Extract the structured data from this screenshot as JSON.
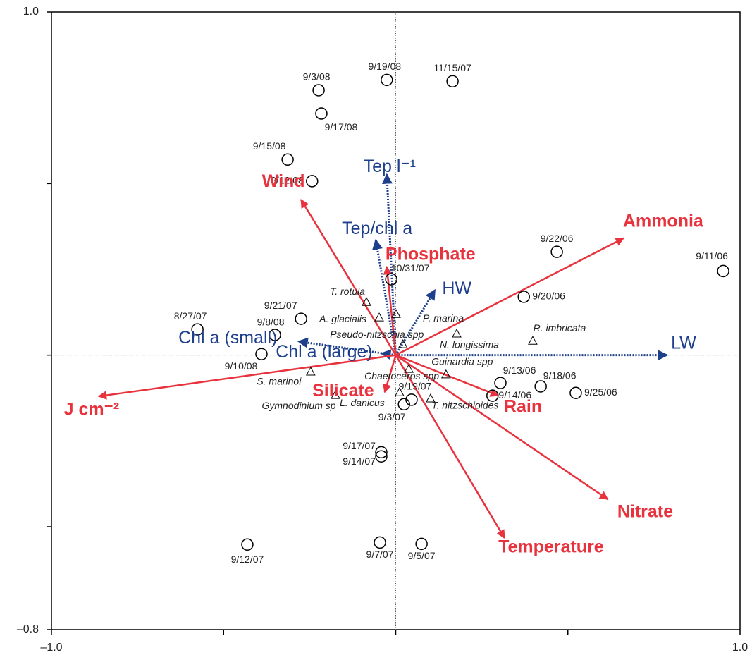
{
  "chart_data": {
    "type": "scatter",
    "xlim": [
      -1.0,
      1.0
    ],
    "ylim": [
      -0.8,
      1.0
    ],
    "xticks": [
      {
        "value": -1.0,
        "label": "–1.0"
      },
      {
        "value": 1.0,
        "label": "1.0"
      }
    ],
    "yticks": [
      {
        "value": -0.8,
        "label": "–0.8"
      },
      {
        "value": 1.0,
        "label": "1.0"
      }
    ],
    "xminorticks": [
      -0.5,
      0,
      0.5
    ],
    "yminorticks": [
      -0.5,
      0,
      0.5
    ],
    "sites": {
      "labels": [
        "9/11/06",
        "9/22/06",
        "9/20/06",
        "9/13/06",
        "9/18/06",
        "9/25/06",
        "9/14/06",
        "9/19/08",
        "11/15/07",
        "9/3/08",
        "9/17/08",
        "9/15/08",
        "9/12/08",
        "10/31/07",
        "9/21/07",
        "8/27/07",
        "9/8/08",
        "9/10/08",
        "9/19/07",
        "9/3/07",
        "9/17/07",
        "9/14/07",
        "9/12/07",
        "9/7/07",
        "9/5/07"
      ],
      "x": [
        0.951,
        0.468,
        0.372,
        0.304,
        0.421,
        0.523,
        0.281,
        -0.026,
        0.165,
        -0.224,
        -0.216,
        -0.314,
        -0.243,
        -0.013,
        -0.275,
        -0.576,
        -0.351,
        -0.39,
        0.046,
        0.024,
        -0.042,
        -0.042,
        -0.431,
        -0.046,
        0.075
      ],
      "y": [
        0.245,
        0.301,
        0.17,
        -0.081,
        -0.091,
        -0.11,
        -0.118,
        0.802,
        0.798,
        0.772,
        0.704,
        0.57,
        0.507,
        0.221,
        0.106,
        0.075,
        0.059,
        0.003,
        -0.13,
        -0.143,
        -0.283,
        -0.295,
        -0.552,
        -0.546,
        -0.55
      ]
    },
    "species": {
      "labels": [
        "T. rotula",
        "A. glacialis",
        "P. marina",
        "Pseudo-nitzschia spp",
        "N. longissima",
        "R. imbricata",
        "S. marinoi",
        "Chaetoceros spp",
        "Guinardia spp",
        "Gymnodinium sp",
        "L. danicus",
        "T. nitzschioides"
      ],
      "x": [
        -0.085,
        -0.048,
        0.001,
        0.021,
        0.177,
        0.398,
        -0.247,
        0.038,
        0.146,
        -0.175,
        0.011,
        0.101
      ],
      "y": [
        0.155,
        0.11,
        0.12,
        0.032,
        0.063,
        0.042,
        -0.048,
        -0.04,
        -0.056,
        -0.116,
        -0.108,
        -0.126
      ]
    },
    "environmental_vectors": {
      "color": "#e8333e",
      "labels": [
        "Wind",
        "Phosphate",
        "Ammonia",
        "J cm⁻²",
        "Silicate",
        "Rain",
        "Nitrate",
        "Temperature"
      ],
      "x": [
        -0.275,
        -0.026,
        0.662,
        -0.863,
        -0.032,
        0.298,
        0.616,
        0.316
      ],
      "y": [
        0.453,
        0.258,
        0.341,
        -0.12,
        -0.108,
        -0.118,
        -0.42,
        -0.533
      ]
    },
    "response_vectors": {
      "color": "#1d3f8c",
      "labels": [
        "Tep l⁻¹",
        "Tep/chl a",
        "HW",
        "LW",
        "Chl a (small)",
        "Chl a (large)"
      ],
      "x": [
        -0.026,
        -0.058,
        0.114,
        0.789,
        -0.283,
        -0.042
      ],
      "y": [
        0.527,
        0.336,
        0.19,
        0,
        0.04,
        0.005
      ]
    }
  }
}
